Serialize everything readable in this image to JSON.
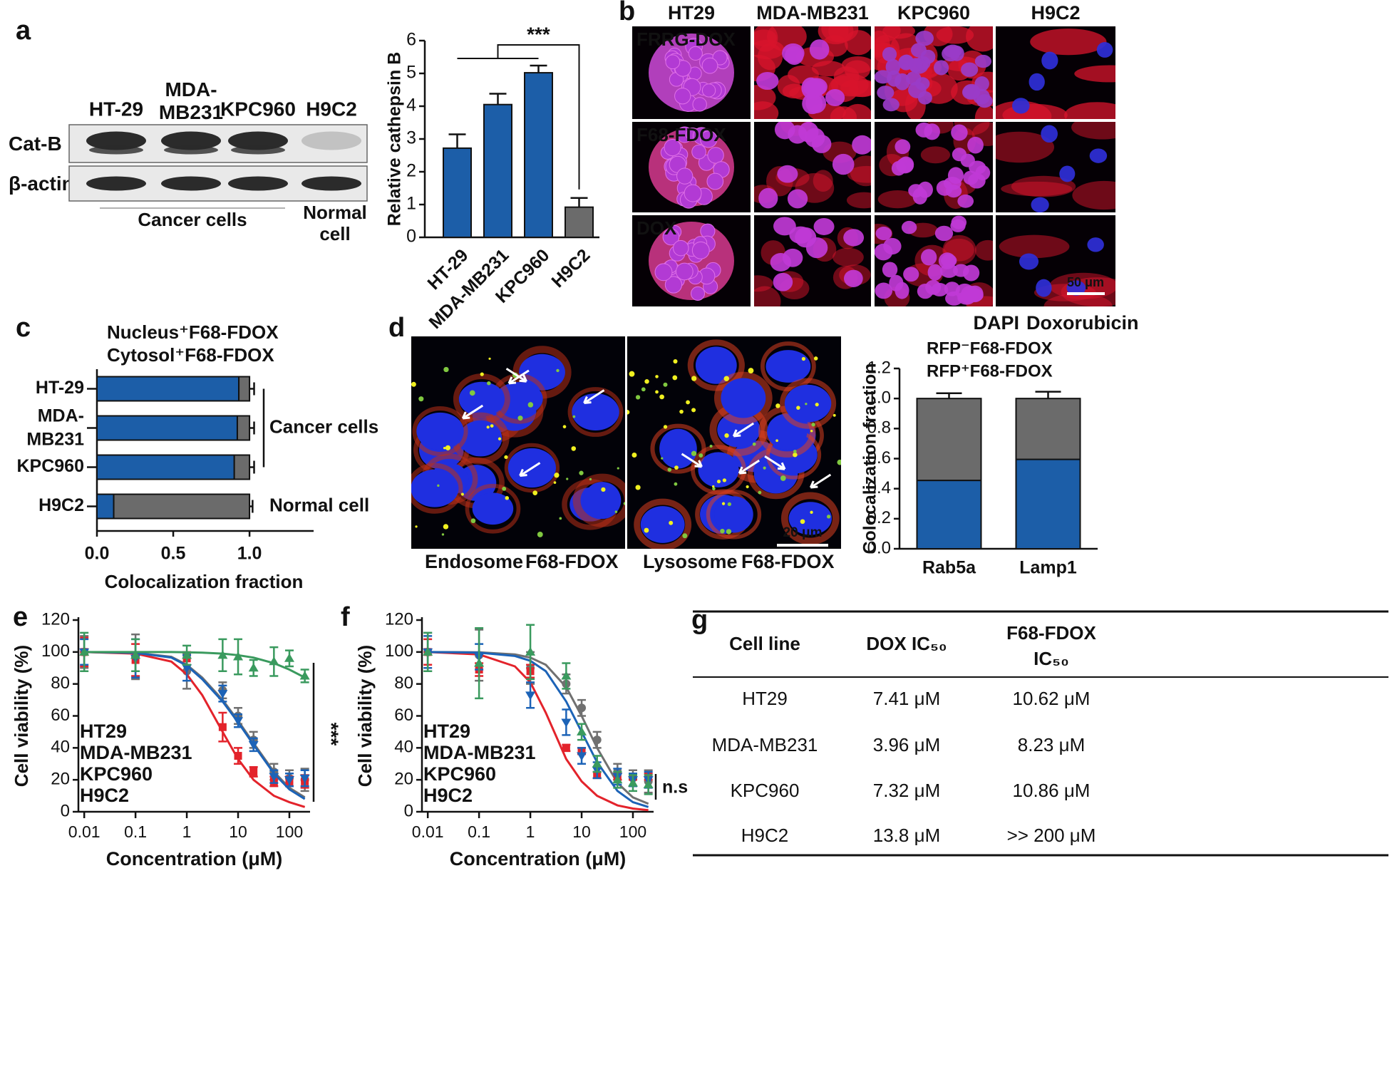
{
  "panel_labels": [
    "a",
    "b",
    "c",
    "d",
    "e",
    "f",
    "g"
  ],
  "blot": {
    "lanes": [
      "HT-29",
      "MDA-\nMB231",
      "KPC960",
      "H9C2"
    ],
    "rows": [
      "Cat-B",
      "β-actin"
    ],
    "groups": [
      "Cancer cells",
      "Normal\ncell"
    ]
  },
  "micrographs_b": {
    "columns": [
      "HT29",
      "MDA-MB231",
      "KPC960",
      "H9C2"
    ],
    "rows": [
      "FRRG-DOX",
      "F68-FDOX",
      "DOX"
    ],
    "scale_bar": "50 μm",
    "legend": [
      "DAPI",
      "Doxorubicin"
    ]
  },
  "micrographs_d": {
    "labels": [
      [
        "Endosome",
        "F68-FDOX"
      ],
      [
        "Lysosome",
        "F68-FDOX"
      ]
    ],
    "scale_bar": "20 μm"
  },
  "table": {
    "header": [
      "Cell line",
      "DOX IC₅₀",
      "F68-FDOX\nIC₅₀"
    ],
    "rows": [
      [
        "HT29",
        "7.41 μM",
        "10.62 μM"
      ],
      [
        "MDA-MB231",
        "3.96 μM",
        "8.23 μM"
      ],
      [
        "KPC960",
        "7.32 μM",
        "10.86 μM"
      ],
      [
        "H9C2",
        "13.8 μM",
        ">> 200 μM"
      ]
    ]
  },
  "chart_data": [
    {
      "type": "bar",
      "y_label": "Relative cathepsin B",
      "categories": [
        "HT-29",
        "MDA-MB231",
        "KPC960",
        "H9C2"
      ],
      "values": [
        2.72,
        4.05,
        5.02,
        0.92
      ],
      "errors": [
        0.42,
        0.33,
        0.22,
        0.28
      ],
      "colors": [
        "#1c5ea8",
        "#1c5ea8",
        "#1c5ea8",
        "#6b6b6b"
      ],
      "ylim": [
        0,
        6
      ],
      "yticks": [
        0,
        1,
        2,
        3,
        4,
        5,
        6
      ],
      "annotation": "***"
    },
    {
      "type": "hbar-stacked",
      "x_label": "Colocalization fraction",
      "categories": [
        "HT-29",
        "MDA-\nMB231",
        "KPC960",
        "H9C2"
      ],
      "series": [
        {
          "name": "Nucleus⁺F68-FDOX",
          "color": "#1c5ea8",
          "values": [
            0.93,
            0.92,
            0.9,
            0.11
          ],
          "errors": [
            0.03,
            0.03,
            0.03,
            0.02
          ]
        },
        {
          "name": "Cytosol⁺F68-FDOX",
          "color": "#6b6b6b",
          "values": [
            0.07,
            0.08,
            0.1,
            0.89
          ],
          "errors": [
            0.03,
            0.03,
            0.03,
            0.02
          ]
        }
      ],
      "xlim": [
        0,
        1.42
      ],
      "xticks": [
        {
          "value": 0,
          "label": "0.0"
        },
        {
          "value": 0.5,
          "label": "0.5"
        },
        {
          "value": 1,
          "label": "1.0"
        }
      ],
      "groups": [
        "Cancer cells",
        "Normal cell"
      ]
    },
    {
      "type": "bar-stacked",
      "y_label": "Colocalization fraction",
      "categories": [
        "Rab5a",
        "Lamp1"
      ],
      "series": [
        {
          "name": "RFP⁺F68-FDOX",
          "color": "#1c5ea8",
          "values": [
            0.455,
            0.595
          ],
          "errors": [
            0.04,
            0.04
          ]
        },
        {
          "name": "RFP⁻F68-FDOX",
          "color": "#6b6b6b",
          "values": [
            0.545,
            0.405
          ],
          "errors": [
            0.035,
            0.045
          ]
        }
      ],
      "ylim": [
        0,
        1.2
      ],
      "yticks": [
        {
          "value": 0,
          "label": "0.0"
        },
        {
          "value": 0.2,
          "label": "0.2"
        },
        {
          "value": 0.4,
          "label": "0.4"
        },
        {
          "value": 0.6,
          "label": "0.6"
        },
        {
          "value": 0.8,
          "label": "0.8"
        },
        {
          "value": 1,
          "label": "1.0"
        },
        {
          "value": 1.2,
          "label": "1.2"
        }
      ]
    },
    {
      "type": "line",
      "x_log": true,
      "x_label": "Concentration (μM)",
      "y_label": "Cell viability (%)",
      "x": [
        0.01,
        0.1,
        1,
        5,
        10,
        20,
        50,
        100,
        200
      ],
      "curve_x": [
        0.01,
        0.1,
        0.5,
        1,
        2,
        5,
        10,
        20,
        50,
        100,
        200
      ],
      "series": [
        {
          "name": "HT29",
          "color": "#707070",
          "marker": "circle",
          "values": [
            100,
            97,
            88,
            76,
            60,
            45,
            25,
            21,
            20
          ],
          "errors": [
            10,
            14,
            11,
            5,
            5,
            5,
            5,
            5,
            7
          ],
          "curve": [
            100,
            99.5,
            97,
            92,
            84,
            70,
            57,
            43,
            25,
            15,
            9
          ]
        },
        {
          "name": "MDA-MB231",
          "color": "#e3232b",
          "marker": "square",
          "values": [
            100,
            95,
            96,
            53,
            35,
            25,
            19,
            19,
            19
          ],
          "errors": [
            9,
            10,
            4,
            9,
            5,
            3,
            3,
            3,
            4
          ],
          "curve": [
            100,
            99,
            94,
            86,
            73,
            50,
            33,
            20,
            10,
            6,
            3
          ]
        },
        {
          "name": "KPC960",
          "color": "#1c63b7",
          "marker": "triangle-down",
          "values": [
            100,
            96,
            90,
            74,
            57,
            42,
            22,
            20,
            21
          ],
          "errors": [
            8,
            12,
            8,
            5,
            4,
            4,
            4,
            4,
            5
          ],
          "curve": [
            100,
            99.5,
            96.5,
            91.5,
            83,
            69,
            56,
            42,
            24,
            14,
            8
          ]
        },
        {
          "name": "H9C2",
          "color": "#3a9a5e",
          "marker": "triangle-up",
          "values": [
            100,
            98,
            98,
            98,
            97,
            90,
            94,
            96,
            85
          ],
          "errors": [
            12,
            10,
            6,
            10,
            11,
            5,
            9,
            5,
            4
          ],
          "curve": [
            100,
            100,
            100,
            99.8,
            99.6,
            99,
            98,
            96.5,
            93,
            89,
            84
          ]
        }
      ],
      "xlim": [
        0.0077,
        253
      ],
      "xticks": [
        0.01,
        0.1,
        1,
        10,
        100
      ],
      "ylim": [
        0,
        120
      ],
      "yticks": [
        0,
        20,
        40,
        60,
        80,
        100,
        120
      ],
      "annotation": "***"
    },
    {
      "type": "line",
      "x_log": true,
      "x_label": "Concentration (μM)",
      "y_label": "Cell viability (%)",
      "x": [
        0.01,
        0.1,
        1,
        5,
        10,
        20,
        50,
        100,
        200
      ],
      "curve_x": [
        0.01,
        0.1,
        0.5,
        1,
        2,
        5,
        10,
        20,
        50,
        100,
        200
      ],
      "series": [
        {
          "name": "HT29",
          "color": "#707070",
          "marker": "circle",
          "values": [
            100,
            98,
            90,
            80,
            65,
            45,
            25,
            21,
            19
          ],
          "errors": [
            12,
            16,
            10,
            6,
            5,
            5,
            5,
            5,
            7
          ],
          "curve": [
            100,
            99.8,
            98.5,
            96.5,
            92,
            78,
            60,
            40,
            18,
            9,
            5
          ]
        },
        {
          "name": "MDA-MB231",
          "color": "#e3232b",
          "marker": "square",
          "values": [
            100,
            89,
            88,
            40,
            38,
            23,
            22,
            22,
            22
          ],
          "errors": [
            8,
            4,
            4,
            2,
            2,
            2,
            2,
            2,
            2
          ],
          "curve": [
            100,
            98.5,
            91,
            81,
            62,
            33,
            19,
            10,
            4,
            2,
            1
          ]
        },
        {
          "name": "KPC960",
          "color": "#1c63b7",
          "marker": "triangle-down",
          "values": [
            100,
            97,
            73,
            56,
            35,
            26,
            22,
            20,
            20
          ],
          "errors": [
            10,
            8,
            8,
            8,
            5,
            5,
            5,
            4,
            5
          ],
          "curve": [
            100,
            99.6,
            97.5,
            94.5,
            88,
            69,
            50,
            31,
            13,
            6,
            3
          ]
        },
        {
          "name": "H9C2",
          "color": "#3a9a5e",
          "marker": "triangle-up",
          "values": [
            100,
            93,
            100,
            85,
            50,
            30,
            20,
            18,
            17
          ],
          "errors": [
            12,
            22,
            17,
            8,
            5,
            5,
            5,
            5,
            6
          ]
        }
      ],
      "xlim": [
        0.0077,
        253
      ],
      "xticks": [
        0.01,
        0.1,
        1,
        10,
        100
      ],
      "ylim": [
        0,
        120
      ],
      "yticks": [
        0,
        20,
        40,
        60,
        80,
        100,
        120
      ],
      "annotation": "n.s"
    }
  ]
}
